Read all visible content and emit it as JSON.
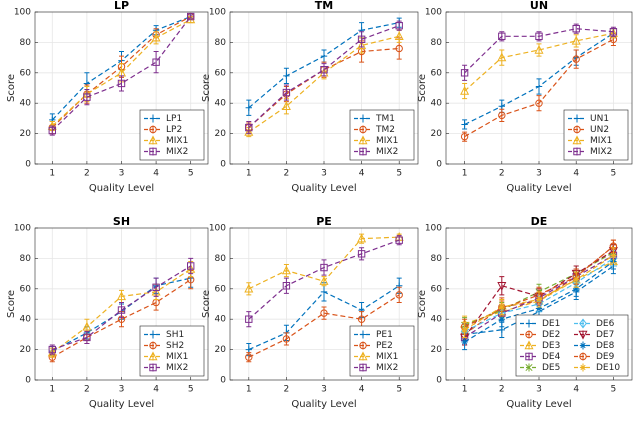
{
  "chart_data": [
    {
      "type": "line",
      "title": "LP",
      "x_label": "Quality Level",
      "y_label": "Score",
      "x": [
        1,
        2,
        3,
        4,
        5
      ],
      "xlim": [
        0.5,
        5.5
      ],
      "xticks": [
        1,
        2,
        3,
        4,
        5
      ],
      "ylim": [
        0,
        100
      ],
      "yticks": [
        0,
        20,
        40,
        60,
        80,
        100
      ],
      "grid": true,
      "legend": "lower right",
      "series": [
        {
          "name": "LP1",
          "color": "#0072BD",
          "marker": "plus",
          "values": [
            29,
            53,
            68,
            88,
            97
          ],
          "errors": [
            4,
            7,
            6,
            3,
            1
          ]
        },
        {
          "name": "LP2",
          "color": "#D95319",
          "marker": "circle",
          "values": [
            24,
            46,
            64,
            85,
            97
          ],
          "errors": [
            4,
            6,
            7,
            4,
            1
          ]
        },
        {
          "name": "MIX1",
          "color": "#EDB120",
          "marker": "triangle",
          "values": [
            25,
            46,
            60,
            83,
            95
          ],
          "errors": [
            3,
            5,
            6,
            4,
            2
          ]
        },
        {
          "name": "MIX2",
          "color": "#7E2F8E",
          "marker": "square",
          "values": [
            22,
            44,
            53,
            67,
            97
          ],
          "errors": [
            3,
            5,
            5,
            7,
            1
          ]
        }
      ]
    },
    {
      "type": "line",
      "title": "TM",
      "x_label": "Quality Level",
      "y_label": "Score",
      "x": [
        1,
        2,
        3,
        4,
        5
      ],
      "xlim": [
        0.5,
        5.5
      ],
      "xticks": [
        1,
        2,
        3,
        4,
        5
      ],
      "ylim": [
        0,
        100
      ],
      "yticks": [
        0,
        20,
        40,
        60,
        80,
        100
      ],
      "grid": true,
      "legend": "lower right",
      "series": [
        {
          "name": "TM1",
          "color": "#0072BD",
          "marker": "plus",
          "values": [
            37,
            58,
            71,
            88,
            93
          ],
          "errors": [
            5,
            5,
            4,
            5,
            3
          ]
        },
        {
          "name": "TM2",
          "color": "#D95319",
          "marker": "circle",
          "values": [
            24,
            46,
            62,
            74,
            76
          ],
          "errors": [
            3,
            5,
            5,
            7,
            7
          ]
        },
        {
          "name": "MIX1",
          "color": "#EDB120",
          "marker": "triangle",
          "values": [
            21,
            38,
            60,
            78,
            84
          ],
          "errors": [
            3,
            5,
            4,
            5,
            4
          ]
        },
        {
          "name": "MIX2",
          "color": "#7E2F8E",
          "marker": "square",
          "values": [
            24,
            47,
            62,
            82,
            91
          ],
          "errors": [
            4,
            5,
            4,
            5,
            3
          ]
        }
      ]
    },
    {
      "type": "line",
      "title": "UN",
      "x_label": "Quality Level",
      "y_label": "Score",
      "x": [
        1,
        2,
        3,
        4,
        5
      ],
      "xlim": [
        0.5,
        5.5
      ],
      "xticks": [
        1,
        2,
        3,
        4,
        5
      ],
      "ylim": [
        0,
        100
      ],
      "yticks": [
        0,
        20,
        40,
        60,
        80,
        100
      ],
      "grid": true,
      "legend": "lower right",
      "series": [
        {
          "name": "UN1",
          "color": "#0072BD",
          "marker": "plus",
          "values": [
            26,
            38,
            51,
            70,
            86
          ],
          "errors": [
            3,
            4,
            5,
            5,
            3
          ]
        },
        {
          "name": "UN2",
          "color": "#D95319",
          "marker": "circle",
          "values": [
            18,
            32,
            40,
            69,
            82
          ],
          "errors": [
            3,
            4,
            5,
            6,
            4
          ]
        },
        {
          "name": "MIX1",
          "color": "#EDB120",
          "marker": "triangle",
          "values": [
            48,
            70,
            75,
            81,
            86
          ],
          "errors": [
            5,
            5,
            4,
            4,
            3
          ]
        },
        {
          "name": "MIX2",
          "color": "#7E2F8E",
          "marker": "square",
          "values": [
            60,
            84,
            84,
            89,
            87
          ],
          "errors": [
            5,
            3,
            3,
            3,
            3
          ]
        }
      ]
    },
    {
      "type": "line",
      "title": "SH",
      "x_label": "Quality Level",
      "y_label": "Score",
      "x": [
        1,
        2,
        3,
        4,
        5
      ],
      "xlim": [
        0.5,
        5.5
      ],
      "xticks": [
        1,
        2,
        3,
        4,
        5
      ],
      "ylim": [
        0,
        100
      ],
      "yticks": [
        0,
        20,
        40,
        60,
        80,
        100
      ],
      "grid": true,
      "legend": "lower right",
      "series": [
        {
          "name": "SH1",
          "color": "#0072BD",
          "marker": "plus",
          "values": [
            19,
            31,
            45,
            62,
            67
          ],
          "errors": [
            3,
            4,
            5,
            5,
            6
          ]
        },
        {
          "name": "SH2",
          "color": "#D95319",
          "marker": "circle",
          "values": [
            15,
            28,
            40,
            51,
            66
          ],
          "errors": [
            3,
            4,
            5,
            5,
            6
          ]
        },
        {
          "name": "MIX1",
          "color": "#EDB120",
          "marker": "triangle",
          "values": [
            18,
            35,
            55,
            58,
            73
          ],
          "errors": [
            3,
            5,
            4,
            5,
            5
          ]
        },
        {
          "name": "MIX2",
          "color": "#7E2F8E",
          "marker": "square",
          "values": [
            20,
            28,
            46,
            61,
            75
          ],
          "errors": [
            3,
            4,
            5,
            6,
            5
          ]
        }
      ]
    },
    {
      "type": "line",
      "title": "PE",
      "x_label": "Quality Level",
      "y_label": "Score",
      "x": [
        1,
        2,
        3,
        4,
        5
      ],
      "xlim": [
        0.5,
        5.5
      ],
      "xticks": [
        1,
        2,
        3,
        4,
        5
      ],
      "ylim": [
        0,
        100
      ],
      "yticks": [
        0,
        20,
        40,
        60,
        80,
        100
      ],
      "grid": true,
      "legend": "lower right",
      "series": [
        {
          "name": "PE1",
          "color": "#0072BD",
          "marker": "plus",
          "values": [
            20,
            31,
            58,
            46,
            62
          ],
          "errors": [
            4,
            5,
            6,
            5,
            5
          ]
        },
        {
          "name": "PE2",
          "color": "#D95319",
          "marker": "circle",
          "values": [
            15,
            27,
            44,
            40,
            56
          ],
          "errors": [
            3,
            4,
            4,
            5,
            5
          ]
        },
        {
          "name": "MIX1",
          "color": "#EDB120",
          "marker": "triangle",
          "values": [
            60,
            72,
            65,
            93,
            94
          ],
          "errors": [
            4,
            4,
            3,
            3,
            2
          ]
        },
        {
          "name": "MIX2",
          "color": "#7E2F8E",
          "marker": "square",
          "values": [
            40,
            62,
            74,
            83,
            92
          ],
          "errors": [
            5,
            5,
            5,
            4,
            3
          ]
        }
      ]
    },
    {
      "type": "line",
      "title": "DE",
      "x_label": "Quality Level",
      "y_label": "Score",
      "x": [
        1,
        2,
        3,
        4,
        5
      ],
      "xlim": [
        0.5,
        5.5
      ],
      "xticks": [
        1,
        2,
        3,
        4,
        5
      ],
      "ylim": [
        0,
        100
      ],
      "yticks": [
        0,
        20,
        40,
        60,
        80,
        100
      ],
      "grid": true,
      "legend": "lower right",
      "series": [
        {
          "name": "DE1",
          "color": "#0072BD",
          "marker": "plus",
          "values": [
            30,
            33,
            45,
            58,
            75
          ],
          "errors": [
            5,
            5,
            5,
            5,
            5
          ]
        },
        {
          "name": "DE2",
          "color": "#D95319",
          "marker": "circle",
          "values": [
            30,
            48,
            52,
            68,
            88
          ],
          "errors": [
            5,
            6,
            5,
            5,
            4
          ]
        },
        {
          "name": "DE3",
          "color": "#EDB120",
          "marker": "triangle",
          "values": [
            37,
            45,
            52,
            66,
            78
          ],
          "errors": [
            5,
            5,
            5,
            5,
            5
          ]
        },
        {
          "name": "DE4",
          "color": "#7E2F8E",
          "marker": "square",
          "values": [
            28,
            44,
            54,
            68,
            82
          ],
          "errors": [
            5,
            5,
            5,
            5,
            5
          ]
        },
        {
          "name": "DE5",
          "color": "#77AC30",
          "marker": "x",
          "values": [
            36,
            46,
            58,
            70,
            84
          ],
          "errors": [
            5,
            5,
            5,
            5,
            5
          ]
        },
        {
          "name": "DE6",
          "color": "#4DBEEE",
          "marker": "diamond",
          "values": [
            32,
            44,
            50,
            64,
            80
          ],
          "errors": [
            5,
            5,
            5,
            5,
            5
          ]
        },
        {
          "name": "DE7",
          "color": "#A2142F",
          "marker": "triangle-down",
          "values": [
            28,
            62,
            55,
            70,
            85
          ],
          "errors": [
            5,
            6,
            5,
            5,
            4
          ]
        },
        {
          "name": "DE8",
          "color": "#0072BD",
          "marker": "star",
          "values": [
            25,
            40,
            47,
            60,
            78
          ],
          "errors": [
            5,
            5,
            5,
            5,
            5
          ]
        },
        {
          "name": "DE9",
          "color": "#D95319",
          "marker": "circle",
          "values": [
            35,
            47,
            56,
            68,
            88
          ],
          "errors": [
            5,
            5,
            5,
            5,
            4
          ]
        },
        {
          "name": "DE10",
          "color": "#EDB120",
          "marker": "star",
          "values": [
            33,
            48,
            53,
            66,
            82
          ],
          "errors": [
            5,
            5,
            5,
            5,
            5
          ]
        }
      ]
    }
  ]
}
